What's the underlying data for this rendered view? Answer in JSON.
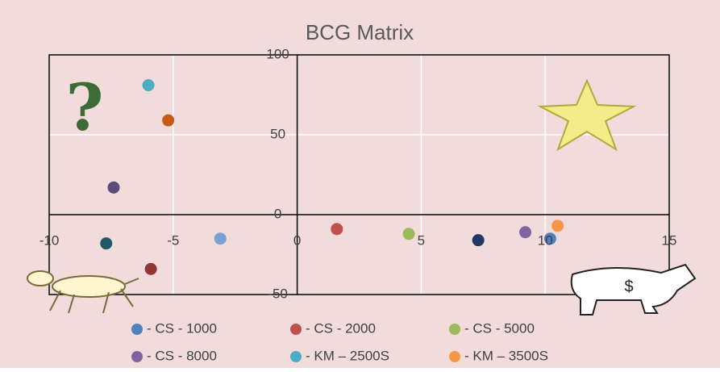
{
  "chart_data": {
    "type": "scatter",
    "title": "BCG Matrix",
    "xlim": [
      -10,
      15
    ],
    "xticks": [
      -10,
      -5,
      0,
      5,
      10,
      15
    ],
    "ylim": [
      -50,
      100
    ],
    "yticks": [
      -50,
      0,
      50,
      100
    ],
    "grid": true,
    "series": [
      {
        "name": "- CS - 1000",
        "color": "#4f81bd",
        "x": [
          10.2
        ],
        "values": [
          -15
        ]
      },
      {
        "name": "- CS - 2000",
        "color": "#c0504d",
        "x": [
          1.6
        ],
        "values": [
          -9
        ]
      },
      {
        "name": "- CS - 5000",
        "color": "#9bbb59",
        "x": [
          4.5
        ],
        "values": [
          -12
        ]
      },
      {
        "name": "- CS - 8000",
        "color": "#8064a2",
        "x": [
          9.2
        ],
        "values": [
          -11
        ]
      },
      {
        "name": "- KM – 2500S",
        "color": "#4bacc6",
        "x": [
          -6
        ],
        "values": [
          81
        ]
      },
      {
        "name": "- KM – 3500S",
        "color": "#f79646",
        "x": [
          10.5
        ],
        "values": [
          -7
        ]
      },
      {
        "color": "#7ba0d4",
        "x": [
          -3.1
        ],
        "values": [
          -15
        ]
      },
      {
        "color": "#1f3864",
        "x": [
          7.3
        ],
        "values": [
          -16
        ]
      },
      {
        "color": "#5f497a",
        "x": [
          -7.4
        ],
        "values": [
          17
        ]
      },
      {
        "color": "#215968",
        "x": [
          -7.7
        ],
        "values": [
          -18
        ]
      },
      {
        "color": "#943634",
        "x": [
          -5.9
        ],
        "values": [
          -34
        ]
      },
      {
        "color": "#c55a11",
        "x": [
          -5.2
        ],
        "values": [
          59
        ]
      }
    ]
  }
}
